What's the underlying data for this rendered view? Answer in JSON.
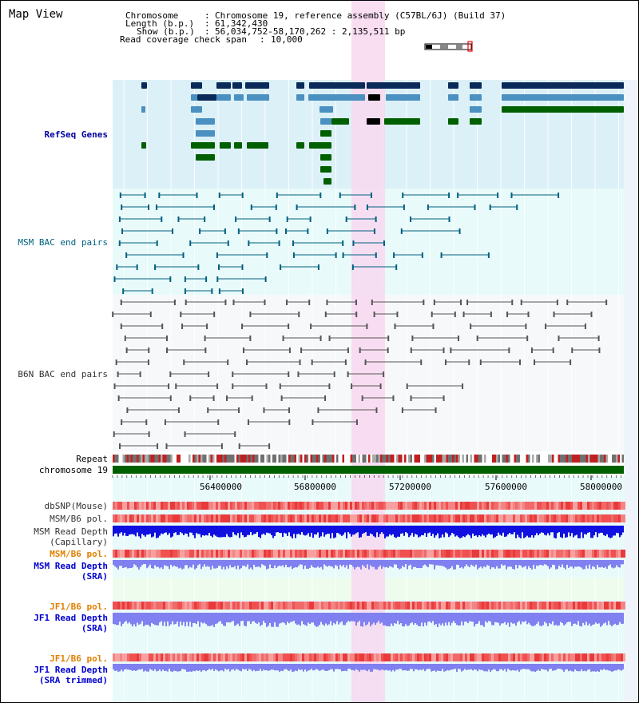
{
  "header": {
    "title": "Map View",
    "chromosome_key": "Chromosome",
    "chromosome_value": "Chromosome 19, reference assembly (C57BL/6J) (Build 37)",
    "length_key": "Length (b.p.)",
    "length_value": "61,342,430",
    "show_key": "Show (b.p.)",
    "show_value": "56,034,752-58,170,262 : 2,135,511 bp",
    "span_key": "Read coverage check span",
    "span_value": "10,000"
  },
  "tracks": {
    "refseq": "RefSeq Genes",
    "msm_bac": "MSM BAC end pairs",
    "b6n_bac": "B6N BAC end pairs",
    "repeat": "Repeat",
    "chromosome": "chromosome 19",
    "dbsnp": "dbSNP(Mouse)",
    "msm_pol1": "MSM/B6 pol.",
    "msm_depth_cap_1": "MSM Read Depth",
    "msm_depth_cap_2": "(Capillary)",
    "msm_pol2": "MSM/B6 pol.",
    "msm_depth_sra_1": "MSM Read Depth",
    "msm_depth_sra_2": "(SRA)",
    "jf1_pol1": "JF1/B6 pol.",
    "jf1_depth_1": "JF1 Read Depth",
    "jf1_depth_2": "(SRA)",
    "jf1_pol2": "JF1/B6 pol.",
    "jf1_trim_1": "JF1 Read Depth",
    "jf1_trim_2": "(SRA trimmed)"
  },
  "axis": {
    "ticks": [
      "56400000",
      "56800000",
      "57200000",
      "57600000",
      "58000000"
    ]
  },
  "colors": {
    "refseq_bg": "#dcf0f8",
    "bac_bg": "#e8fafa",
    "highlight": "#f8d8f0",
    "gene_dark": "#0a2a5a",
    "gene_mid": "#4a90c0",
    "gene_green": "#006000",
    "msm_bac": "#006080",
    "b6n_bac": "#555555",
    "depth_dark": "#1010e0",
    "depth_light": "#8080f0"
  }
}
